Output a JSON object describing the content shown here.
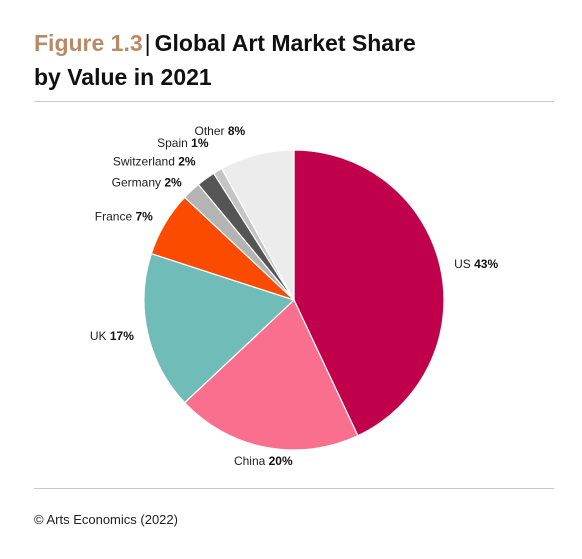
{
  "header": {
    "figure_number": "Figure 1.3",
    "separator": "|",
    "title_line1": "Global Art Market Share",
    "title_line2": "by Value in 2021"
  },
  "footer": {
    "source": "© Arts Economics (2022)"
  },
  "chart_data": {
    "type": "pie",
    "title": "Global Art Market Share by Value in 2021",
    "start_angle_deg": 0,
    "direction": "clockwise",
    "slices": [
      {
        "label": "US",
        "value": 43,
        "display": "43%",
        "color": "#c0004a"
      },
      {
        "label": "China",
        "value": 20,
        "display": "20%",
        "color": "#fb6f8e"
      },
      {
        "label": "UK",
        "value": 17,
        "display": "17%",
        "color": "#6fbcb8"
      },
      {
        "label": "France",
        "value": 7,
        "display": "7%",
        "color": "#fb4b00"
      },
      {
        "label": "Germany",
        "value": 2,
        "display": "2%",
        "color": "#b4b4b4"
      },
      {
        "label": "Switzerland",
        "value": 2,
        "display": "2%",
        "color": "#555555"
      },
      {
        "label": "Spain",
        "value": 1,
        "display": "1%",
        "color": "#c4c4c4"
      },
      {
        "label": "Other",
        "value": 8,
        "display": "8%",
        "color": "#ececec"
      }
    ]
  }
}
